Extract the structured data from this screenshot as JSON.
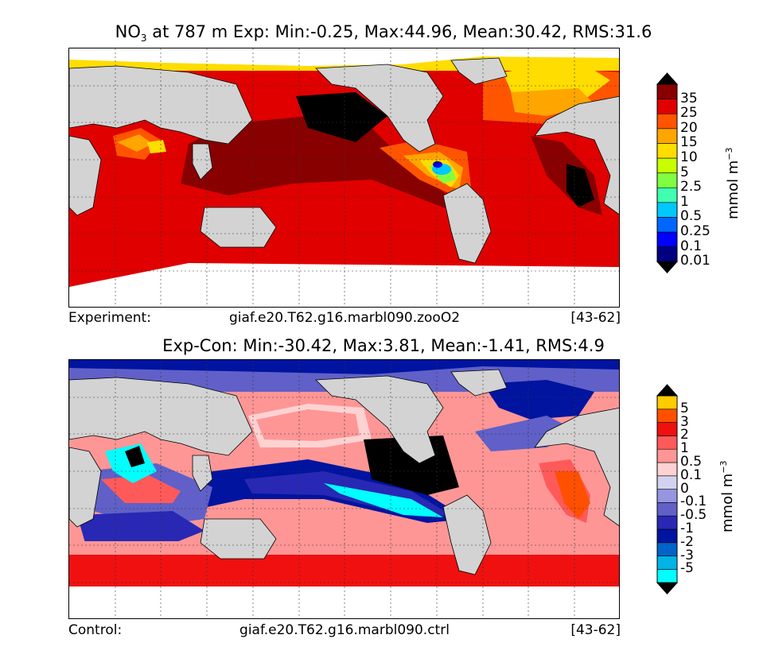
{
  "panels": [
    {
      "title_parts": {
        "species": "NO",
        "subscript": "3",
        "rest": " at 787 m Exp: Min:-0.25, Max:44.96, Mean:30.42, RMS:31.6"
      },
      "footer": {
        "left": "Experiment:",
        "center": "giaf.e20.T62.g16.marbl090.zooO2",
        "right": "[43-62]"
      },
      "colorbar": {
        "unit_base": "mmol m",
        "unit_exponent": "−3",
        "labels": [
          "35",
          "25",
          "20",
          "15",
          "10",
          "5",
          "2.5",
          "1",
          "0.5",
          "0.25",
          "0.1",
          "0.01"
        ],
        "colors": [
          "#000080",
          "#0000ff",
          "#0066ff",
          "#00c8ff",
          "#40ffb0",
          "#80ff40",
          "#c8ff00",
          "#ffdd00",
          "#ffa500",
          "#ff5500",
          "#e00000",
          "#880000"
        ]
      }
    },
    {
      "title": "Exp-Con: Min:-30.42, Max:3.81, Mean:-1.41, RMS:4.9",
      "footer": {
        "left": "Control:",
        "center": "giaf.e20.T62.g16.marbl090.ctrl",
        "right": "[43-62]"
      },
      "colorbar": {
        "unit_base": "mmol m",
        "unit_exponent": "−3",
        "labels": [
          "5",
          "3",
          "2",
          "1",
          "0.5",
          "0.1",
          "0",
          "-0.1",
          "-0.5",
          "-1",
          "-2",
          "-3",
          "-5"
        ],
        "colors": [
          "#00ffff",
          "#00b4e6",
          "#0064c8",
          "#0014a0",
          "#2828b4",
          "#6060c8",
          "#9696e0",
          "#d2d2f0",
          "#ffd2d2",
          "#ff9696",
          "#ff5a5a",
          "#f01010",
          "#ff5000",
          "#ffcc00"
        ]
      }
    }
  ]
}
